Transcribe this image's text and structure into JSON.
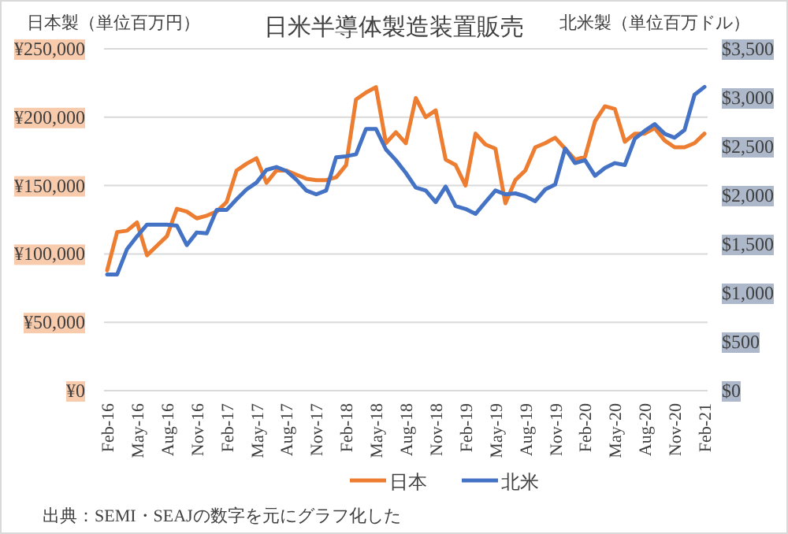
{
  "chart_data": {
    "type": "line",
    "title": "日米半導体製造装置販売",
    "ylabel": "日本製（単位百万円）",
    "y2label": "北米製（単位百万ドル）",
    "categories": [
      "Feb-16",
      null,
      null,
      "May-16",
      null,
      null,
      "Aug-16",
      null,
      null,
      "Nov-16",
      null,
      null,
      "Feb-17",
      null,
      null,
      "May-17",
      null,
      null,
      "Aug-17",
      null,
      null,
      "Nov-17",
      null,
      null,
      "Feb-18",
      null,
      null,
      "May-18",
      null,
      null,
      "Aug-18",
      null,
      null,
      "Nov-18",
      null,
      null,
      "Feb-19",
      null,
      null,
      "May-19",
      null,
      null,
      "Aug-19",
      null,
      null,
      "Nov-19",
      null,
      null,
      "Feb-20",
      null,
      null,
      "May-20",
      null,
      null,
      "Aug-20",
      null,
      null,
      "Nov-20",
      null,
      null,
      "Feb-21"
    ],
    "series": [
      {
        "name": "日本",
        "color": "#ed7d31",
        "values": [
          88000,
          116000,
          117000,
          123000,
          99000,
          106000,
          113000,
          133000,
          131000,
          126000,
          128000,
          131000,
          138000,
          161000,
          166000,
          170000,
          152000,
          161000,
          161000,
          158000,
          155000,
          154000,
          154000,
          156000,
          165000,
          213000,
          218000,
          222000,
          181000,
          189000,
          181000,
          214000,
          200000,
          205000,
          169000,
          165000,
          150000,
          188000,
          180000,
          177000,
          137000,
          154000,
          161000,
          178000,
          181000,
          185000,
          177000,
          169000,
          171000,
          197000,
          208000,
          206000,
          182000,
          188000,
          188000,
          192000,
          183000,
          178000,
          178000,
          181000,
          188000
        ]
      },
      {
        "name": "北米",
        "color": "#4472c4",
        "axis": "y2",
        "values": [
          1190,
          1190,
          1450,
          1580,
          1700,
          1700,
          1700,
          1690,
          1490,
          1620,
          1610,
          1850,
          1850,
          1960,
          2060,
          2130,
          2260,
          2290,
          2250,
          2160,
          2050,
          2010,
          2050,
          2390,
          2400,
          2420,
          2680,
          2680,
          2470,
          2360,
          2230,
          2080,
          2050,
          1930,
          2090,
          1890,
          1860,
          1810,
          1930,
          2050,
          2010,
          2020,
          1990,
          1940,
          2060,
          2110,
          2480,
          2330,
          2360,
          2200,
          2280,
          2330,
          2310,
          2580,
          2660,
          2730,
          2630,
          2590,
          2670,
          3030,
          3110
        ]
      }
    ],
    "ylim": [
      0,
      250000
    ],
    "yticks": [
      {
        "value": 0,
        "label": "¥0"
      },
      {
        "value": 50000,
        "label": "¥50,000"
      },
      {
        "value": 100000,
        "label": "¥100,000"
      },
      {
        "value": 150000,
        "label": "¥150,000"
      },
      {
        "value": 200000,
        "label": "¥200,000"
      },
      {
        "value": 250000,
        "label": "¥250,000"
      }
    ],
    "y2lim": [
      0,
      3500
    ],
    "y2ticks": [
      {
        "value": 0,
        "label": "$0"
      },
      {
        "value": 500,
        "label": "$500"
      },
      {
        "value": 1000,
        "label": "$1,000"
      },
      {
        "value": 1500,
        "label": "$1,500"
      },
      {
        "value": 2000,
        "label": "$2,000"
      },
      {
        "value": 2500,
        "label": "$2,500"
      },
      {
        "value": 3000,
        "label": "$3,000"
      },
      {
        "value": 3500,
        "label": "$3,500"
      }
    ],
    "grid": "y",
    "legend": "bottom",
    "marker": "none",
    "line_style": "solid",
    "annotations": [
      "出典：SEMI・SEAJの数字を元にグラフ化した"
    ]
  }
}
